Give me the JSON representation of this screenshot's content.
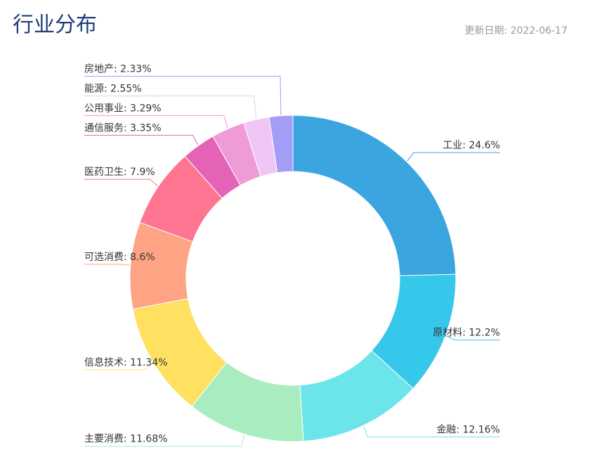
{
  "chart_data": {
    "type": "pie",
    "title": "行业分布",
    "subtitle": "更新日期:  2022-06-17",
    "values": [
      24.6,
      12.2,
      12.16,
      11.68,
      11.34,
      8.6,
      7.9,
      3.35,
      3.29,
      2.55,
      2.33
    ],
    "value_labels": [
      "工业: 24.6%",
      "原材料: 12.2%",
      "金融: 12.16%",
      "主要消费: 11.68%",
      "信息技术: 11.34%",
      "可选消费: 8.6%",
      "医药卫生: 7.9%",
      "通信服务: 3.35%",
      "公用事业: 3.29%",
      "能源: 2.55%",
      "房地产: 2.33%"
    ],
    "colors": [
      "#3ba5e0",
      "#35c8ea",
      "#6ce5ea",
      "#a8ecc0",
      "#ffe060",
      "#ffa385",
      "#fd7591",
      "#e463b6",
      "#ee9bd8",
      "#f0c6f5",
      "#a39df5"
    ]
  }
}
